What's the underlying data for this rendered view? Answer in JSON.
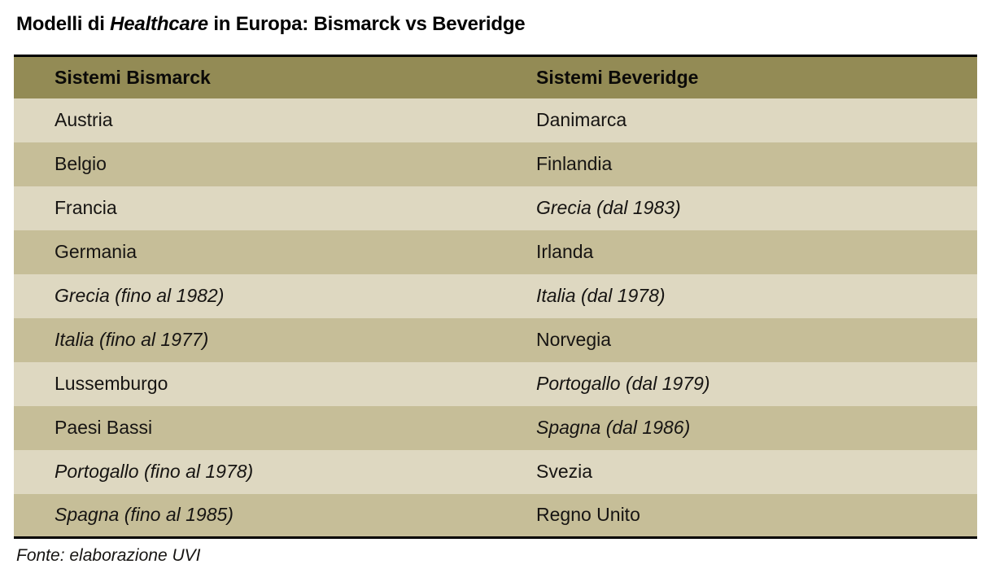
{
  "page": {
    "title": {
      "prefix": "Modelli di ",
      "emphasis": "Healthcare",
      "suffix": " in Europa: Bismarck vs Beveridge"
    },
    "source_note": "Fonte: elaborazione UVI"
  },
  "table": {
    "columns": [
      {
        "key": "bismarck",
        "label": "Sistemi Bismarck"
      },
      {
        "key": "beveridge",
        "label": "Sistemi Beveridge"
      }
    ],
    "rows": [
      {
        "bismarck": {
          "text": "Austria",
          "italic": false
        },
        "beveridge": {
          "text": "Danimarca",
          "italic": false
        }
      },
      {
        "bismarck": {
          "text": "Belgio",
          "italic": false
        },
        "beveridge": {
          "text": "Finlandia",
          "italic": false
        }
      },
      {
        "bismarck": {
          "text": "Francia",
          "italic": false
        },
        "beveridge": {
          "text": "Grecia (dal 1983)",
          "italic": true
        }
      },
      {
        "bismarck": {
          "text": "Germania",
          "italic": false
        },
        "beveridge": {
          "text": "Irlanda",
          "italic": false
        }
      },
      {
        "bismarck": {
          "text": "Grecia (fino al 1982)",
          "italic": true
        },
        "beveridge": {
          "text": "Italia (dal 1978)",
          "italic": true
        }
      },
      {
        "bismarck": {
          "text": "Italia (fino al 1977)",
          "italic": true
        },
        "beveridge": {
          "text": "Norvegia",
          "italic": false
        }
      },
      {
        "bismarck": {
          "text": "Lussemburgo",
          "italic": false
        },
        "beveridge": {
          "text": "Portogallo (dal 1979)",
          "italic": true
        }
      },
      {
        "bismarck": {
          "text": "Paesi Bassi",
          "italic": false
        },
        "beveridge": {
          "text": "Spagna (dal 1986)",
          "italic": true
        }
      },
      {
        "bismarck": {
          "text": "Portogallo (fino al 1978)",
          "italic": true
        },
        "beveridge": {
          "text": "Svezia",
          "italic": false
        }
      },
      {
        "bismarck": {
          "text": "Spagna (fino al 1985)",
          "italic": true
        },
        "beveridge": {
          "text": "Regno Unito",
          "italic": false
        }
      }
    ]
  },
  "colors": {
    "header_bg": "#938b55",
    "row_light": "#ded8c1",
    "row_dark": "#c6be98",
    "border": "#000000",
    "text": "#161412"
  }
}
